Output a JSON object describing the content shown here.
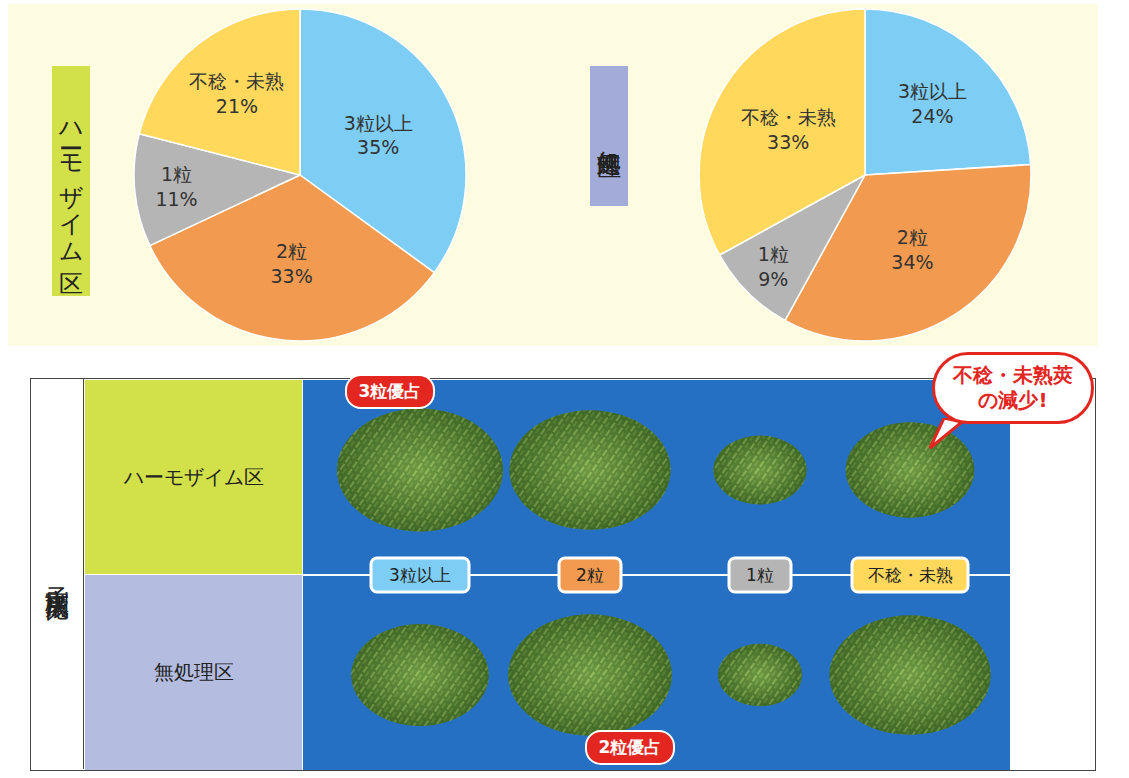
{
  "chart_data": [
    {
      "type": "pie",
      "title": "ハーモザイム区",
      "categories": [
        "3粒以上",
        "2粒",
        "1粒",
        "不稔・未熟"
      ],
      "values": [
        35,
        33,
        11,
        21
      ],
      "value_labels": [
        "35%",
        "33%",
        "11%",
        "21%"
      ],
      "colors": [
        "#7ecdf4",
        "#f29b50",
        "#b5b5b5",
        "#ffd85c"
      ],
      "data_labels": true
    },
    {
      "type": "pie",
      "title": "無処理区",
      "categories": [
        "3粒以上",
        "2粒",
        "1粒",
        "不稔・未熟"
      ],
      "values": [
        24,
        34,
        9,
        33
      ],
      "value_labels": [
        "24%",
        "34%",
        "9%",
        "33%"
      ],
      "colors": [
        "#7ecdf4",
        "#f29b50",
        "#b5b5b5",
        "#ffd85c"
      ],
      "data_labels": true
    }
  ],
  "composition_panel": {
    "title": "子実別構成比",
    "rows": [
      "ハーモザイム区",
      "無処理区"
    ],
    "columns": [
      "3粒以上",
      "2粒",
      "1粒",
      "不稔・未熟"
    ],
    "callouts": [
      {
        "text": "3粒優占",
        "row": 0,
        "column": 0
      },
      {
        "text": "不稔・未熟莢の減少!",
        "row": 0,
        "column": 3
      },
      {
        "text": "2粒優占",
        "row": 1,
        "column": 1
      }
    ]
  }
}
